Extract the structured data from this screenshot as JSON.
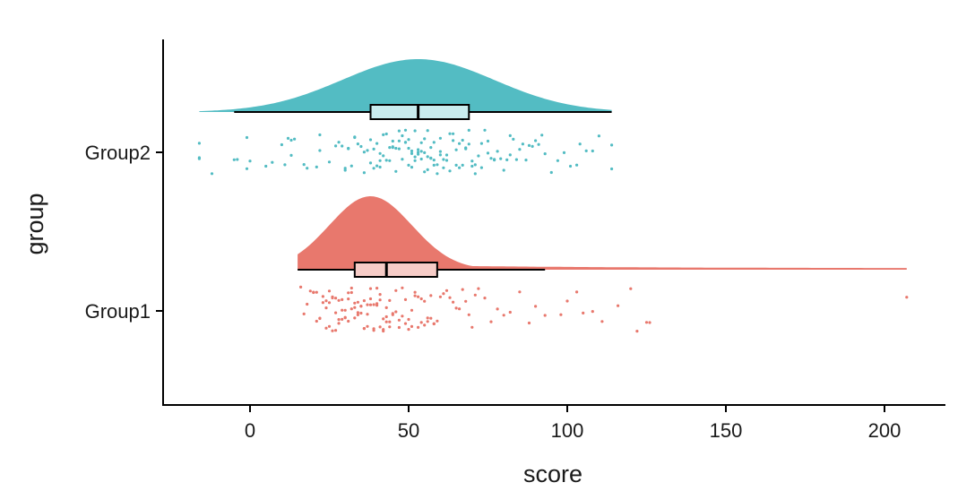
{
  "chart_data": {
    "type": "raincloud",
    "xlabel": "score",
    "ylabel": "group",
    "xlim": [
      -28,
      219
    ],
    "x_ticks": [
      0,
      50,
      100,
      150,
      200
    ],
    "y_categories": [
      "Group1",
      "Group2"
    ],
    "grid": false,
    "legend": "none",
    "series": [
      {
        "name": "Group2",
        "color": "#53BCC3",
        "box_fill": "#C9ECEE",
        "density_range": [
          -16,
          114
        ],
        "density_peak": 53,
        "density_sd": 24,
        "box": {
          "whisker_low": -5,
          "q1": 38,
          "median": 53,
          "q3": 69,
          "whisker_high": 114
        },
        "points": [
          -16,
          -16,
          -16,
          -12,
          -5,
          -4,
          -1,
          -1,
          0,
          5,
          7,
          10,
          11,
          12,
          13,
          13,
          14,
          17,
          18,
          21,
          22,
          22,
          25,
          27,
          28,
          29,
          30,
          30,
          31,
          31,
          32,
          33,
          33,
          34,
          35,
          36,
          36,
          37,
          38,
          38,
          39,
          39,
          40,
          40,
          41,
          41,
          41,
          42,
          42,
          43,
          43,
          44,
          44,
          45,
          45,
          45,
          46,
          46,
          47,
          47,
          47,
          48,
          48,
          49,
          49,
          49,
          50,
          50,
          50,
          51,
          51,
          51,
          52,
          52,
          52,
          53,
          53,
          53,
          54,
          54,
          54,
          55,
          55,
          55,
          56,
          56,
          56,
          57,
          57,
          57,
          58,
          58,
          58,
          59,
          59,
          60,
          60,
          60,
          61,
          61,
          62,
          62,
          63,
          63,
          64,
          64,
          65,
          65,
          66,
          66,
          67,
          67,
          68,
          68,
          69,
          69,
          70,
          70,
          71,
          71,
          72,
          73,
          73,
          74,
          75,
          75,
          76,
          77,
          77,
          78,
          79,
          80,
          81,
          82,
          82,
          83,
          84,
          85,
          86,
          87,
          88,
          89,
          90,
          91,
          92,
          93,
          95,
          97,
          99,
          101,
          103,
          104,
          106,
          108,
          110,
          114,
          114
        ]
      },
      {
        "name": "Group1",
        "color": "#E8786D",
        "box_fill": "#F6CCC7",
        "density_range": [
          15,
          207
        ],
        "density_peak": 38,
        "density_sd": 13,
        "box": {
          "whisker_low": 15,
          "q1": 33,
          "median": 43,
          "q3": 59,
          "whisker_high": 93
        },
        "points": [
          16,
          17,
          18,
          19,
          20,
          20,
          21,
          21,
          22,
          22,
          23,
          23,
          24,
          24,
          24,
          25,
          25,
          25,
          26,
          26,
          26,
          27,
          27,
          27,
          28,
          28,
          28,
          29,
          29,
          29,
          30,
          30,
          30,
          31,
          31,
          31,
          32,
          32,
          32,
          33,
          33,
          33,
          34,
          34,
          34,
          35,
          35,
          35,
          36,
          36,
          36,
          37,
          37,
          37,
          38,
          38,
          38,
          39,
          39,
          39,
          40,
          40,
          40,
          41,
          41,
          41,
          42,
          42,
          42,
          43,
          43,
          43,
          44,
          44,
          44,
          45,
          45,
          46,
          46,
          47,
          47,
          48,
          48,
          49,
          49,
          50,
          50,
          51,
          51,
          52,
          52,
          53,
          53,
          54,
          54,
          55,
          55,
          56,
          56,
          57,
          57,
          58,
          58,
          59,
          60,
          61,
          62,
          63,
          64,
          65,
          66,
          67,
          68,
          69,
          70,
          71,
          72,
          74,
          76,
          78,
          80,
          82,
          85,
          88,
          90,
          93,
          98,
          100,
          103,
          105,
          108,
          111,
          116,
          120,
          122,
          125,
          126,
          207
        ]
      }
    ]
  }
}
